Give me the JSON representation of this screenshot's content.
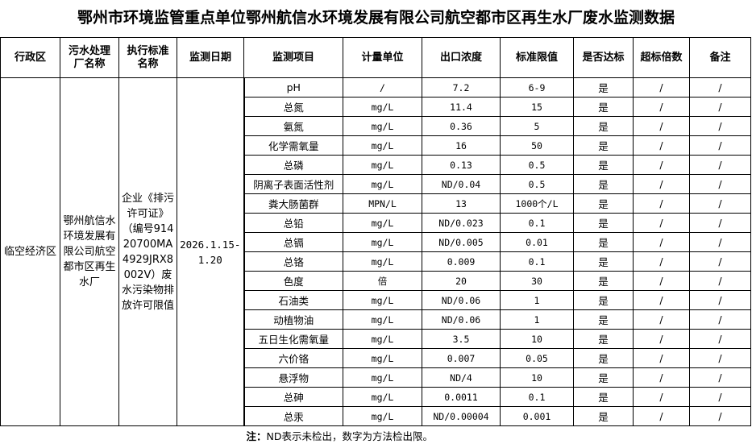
{
  "title": "鄂州市环境监管重点单位鄂州航信水环境发展有限公司航空都市区再生水厂废水监测数据",
  "headers": [
    "行政区",
    "污水处理厂名称",
    "执行标准名称",
    "监测日期",
    "监测项目",
    "计量单位",
    "出口浓度",
    "标准限值",
    "是否达标",
    "超标倍数",
    "备注"
  ],
  "merged": {
    "district": "临空经济区",
    "plant": "鄂州航信水环境发展有限公司航空都市区再生水厂",
    "standard": "企业《排污许可证》（编号91420700MA4929JRX8002V）废水污染物排放许可限值",
    "date": "2026.1.15-1.20"
  },
  "rows": [
    [
      "pH",
      "/",
      "7.2",
      "6-9",
      "是",
      "/",
      "/"
    ],
    [
      "总氮",
      "mg/L",
      "11.4",
      "15",
      "是",
      "/",
      "/"
    ],
    [
      "氨氮",
      "mg/L",
      "0.36",
      "5",
      "是",
      "/",
      "/"
    ],
    [
      "化学需氧量",
      "mg/L",
      "16",
      "50",
      "是",
      "/",
      "/"
    ],
    [
      "总磷",
      "mg/L",
      "0.13",
      "0.5",
      "是",
      "/",
      "/"
    ],
    [
      "阴离子表面活性剂",
      "mg/L",
      "ND/0.04",
      "0.5",
      "是",
      "/",
      "/"
    ],
    [
      "粪大肠菌群",
      "MPN/L",
      "13",
      "1000个/L",
      "是",
      "/",
      "/"
    ],
    [
      "总铅",
      "mg/L",
      "ND/0.023",
      "0.1",
      "是",
      "/",
      "/"
    ],
    [
      "总镉",
      "mg/L",
      "ND/0.005",
      "0.01",
      "是",
      "/",
      "/"
    ],
    [
      "总铬",
      "mg/L",
      "0.009",
      "0.1",
      "是",
      "/",
      "/"
    ],
    [
      "色度",
      "倍",
      "20",
      "30",
      "是",
      "/",
      "/"
    ],
    [
      "石油类",
      "mg/L",
      "ND/0.06",
      "1",
      "是",
      "/",
      "/"
    ],
    [
      "动植物油",
      "mg/L",
      "ND/0.06",
      "1",
      "是",
      "/",
      "/"
    ],
    [
      "五日生化需氧量",
      "mg/L",
      "3.5",
      "10",
      "是",
      "/",
      "/"
    ],
    [
      "六价铬",
      "mg/L",
      "0.007",
      "0.05",
      "是",
      "/",
      "/"
    ],
    [
      "悬浮物",
      "mg/L",
      "ND/4",
      "10",
      "是",
      "/",
      "/"
    ],
    [
      "总砷",
      "mg/L",
      "0.0011",
      "0.1",
      "是",
      "/",
      "/"
    ],
    [
      "总汞",
      "mg/L",
      "ND/0.00004",
      "0.001",
      "是",
      "/",
      "/"
    ]
  ],
  "note": {
    "label": "注：",
    "text": "ND表示未检出，数字为方法检出限。"
  }
}
